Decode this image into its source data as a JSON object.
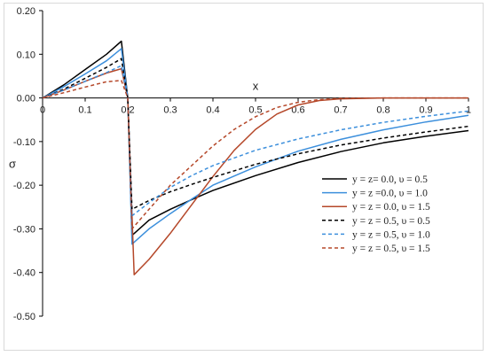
{
  "chart_data": {
    "type": "line",
    "xlabel": "x",
    "ylabel": "σ",
    "xlim": [
      0,
      1
    ],
    "ylim": [
      -0.5,
      0.2
    ],
    "x_ticks": [
      "0",
      "0.1",
      "0.2",
      "0.3",
      "0.4",
      "0.5",
      "0.6",
      "0.7",
      "0.8",
      "0.9",
      "1"
    ],
    "y_ticks": [
      "0.20",
      "0.10",
      "0.00",
      "-0.10",
      "-0.20",
      "-0.30",
      "-0.40",
      "-0.50"
    ],
    "legend_position": "right",
    "series": [
      {
        "name": "y = z= 0.0,  υ = 0.5",
        "color": "#000000",
        "dash": "solid",
        "x": [
          0,
          0.05,
          0.1,
          0.15,
          0.185,
          0.2,
          0.21,
          0.25,
          0.3,
          0.35,
          0.4,
          0.5,
          0.6,
          0.7,
          0.8,
          0.9,
          1.0
        ],
        "y": [
          0,
          0.03,
          0.065,
          0.1,
          0.13,
          0.0,
          -0.315,
          -0.28,
          -0.255,
          -0.233,
          -0.212,
          -0.178,
          -0.148,
          -0.123,
          -0.103,
          -0.088,
          -0.075
        ]
      },
      {
        "name": "y = z =0.0,  υ = 1.0",
        "color": "#3c8fdc",
        "dash": "solid",
        "x": [
          0,
          0.05,
          0.1,
          0.15,
          0.185,
          0.2,
          0.21,
          0.25,
          0.3,
          0.35,
          0.4,
          0.5,
          0.6,
          0.7,
          0.8,
          0.9,
          1.0
        ],
        "y": [
          0,
          0.026,
          0.055,
          0.085,
          0.113,
          0.0,
          -0.335,
          -0.3,
          -0.265,
          -0.232,
          -0.2,
          -0.158,
          -0.122,
          -0.095,
          -0.073,
          -0.055,
          -0.04
        ]
      },
      {
        "name": "y = z = 0.0,  υ = 1.5",
        "color": "#b5482a",
        "dash": "solid",
        "x": [
          0,
          0.05,
          0.1,
          0.15,
          0.185,
          0.2,
          0.215,
          0.25,
          0.3,
          0.35,
          0.4,
          0.45,
          0.5,
          0.55,
          0.6,
          0.65,
          0.7,
          0.8,
          0.9,
          1.0
        ],
        "y": [
          0,
          0.018,
          0.038,
          0.057,
          0.067,
          0.0,
          -0.405,
          -0.37,
          -0.31,
          -0.245,
          -0.18,
          -0.12,
          -0.072,
          -0.037,
          -0.016,
          -0.006,
          -0.002,
          0,
          0,
          0
        ]
      },
      {
        "name": "y = z = 0.5,  υ = 0.5",
        "color": "#000000",
        "dash": "dashed",
        "x": [
          0,
          0.05,
          0.1,
          0.15,
          0.185,
          0.2,
          0.21,
          0.25,
          0.3,
          0.35,
          0.4,
          0.5,
          0.6,
          0.7,
          0.8,
          0.9,
          1.0
        ],
        "y": [
          0,
          0.02,
          0.045,
          0.07,
          0.09,
          0.0,
          -0.255,
          -0.235,
          -0.215,
          -0.198,
          -0.182,
          -0.152,
          -0.128,
          -0.108,
          -0.092,
          -0.078,
          -0.065
        ]
      },
      {
        "name": "y = z = 0.5,  υ = 1.0",
        "color": "#3c8fdc",
        "dash": "dashed",
        "x": [
          0,
          0.05,
          0.1,
          0.15,
          0.185,
          0.2,
          0.21,
          0.25,
          0.3,
          0.35,
          0.4,
          0.5,
          0.6,
          0.7,
          0.8,
          0.9,
          1.0
        ],
        "y": [
          0,
          0.018,
          0.038,
          0.058,
          0.074,
          0.0,
          -0.27,
          -0.24,
          -0.205,
          -0.178,
          -0.155,
          -0.12,
          -0.094,
          -0.073,
          -0.056,
          -0.042,
          -0.03
        ]
      },
      {
        "name": "y = z = 0.5,  υ = 1.5",
        "color": "#b5482a",
        "dash": "dashed",
        "x": [
          0,
          0.05,
          0.1,
          0.15,
          0.185,
          0.2,
          0.21,
          0.25,
          0.3,
          0.35,
          0.4,
          0.45,
          0.5,
          0.55,
          0.6,
          0.65,
          0.7,
          0.8,
          0.9,
          1.0
        ],
        "y": [
          0,
          0.012,
          0.025,
          0.037,
          0.04,
          0.0,
          -0.3,
          -0.255,
          -0.2,
          -0.155,
          -0.11,
          -0.072,
          -0.043,
          -0.022,
          -0.01,
          -0.004,
          -0.001,
          0,
          0,
          0
        ]
      }
    ]
  }
}
